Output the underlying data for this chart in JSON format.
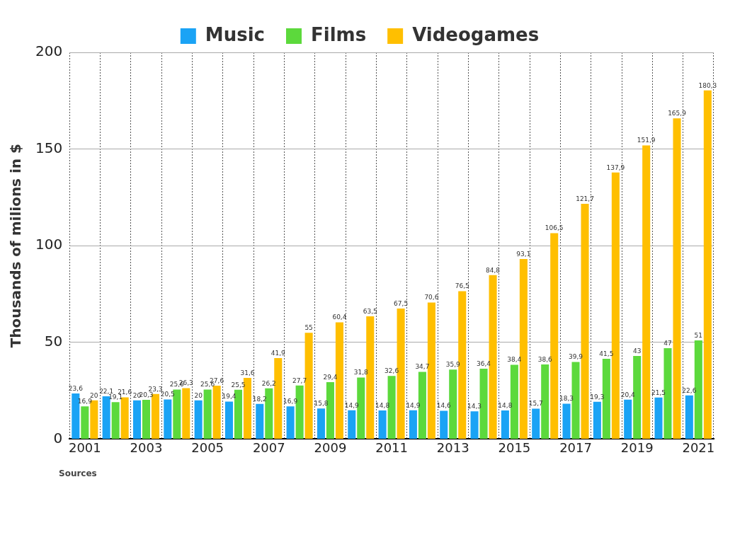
{
  "chart_data": {
    "type": "bar",
    "ylabel": "Thousands of milions in $",
    "categories": [
      "2001",
      null,
      "2003",
      null,
      "2005",
      null,
      "2007",
      null,
      "2009",
      null,
      "2011",
      null,
      "2013",
      null,
      "2015",
      null,
      "2017",
      null,
      "2019",
      null,
      "2021"
    ],
    "series": [
      {
        "name": "Music",
        "color": "#1aa3f5",
        "values": [
          23.6,
          22.1,
          20,
          20.5,
          20,
          19.4,
          18.2,
          16.9,
          15.8,
          14.9,
          14.8,
          14.9,
          14.6,
          14.3,
          14.8,
          15.7,
          18.3,
          19.3,
          20.4,
          21.5,
          22.6
        ],
        "value_labels": [
          "23,6",
          "22,1",
          "20",
          "20,5",
          "20",
          "19,4",
          "18,2",
          "16,9",
          "15,8",
          "14,9",
          "14,8",
          "14,9",
          "14,6",
          "14,3",
          "14,8",
          "15,7",
          "18,3",
          "19,3",
          "20,4",
          "21,5",
          "22,6"
        ]
      },
      {
        "name": "Films",
        "color": "#5cd93c",
        "values": [
          16.9,
          19.1,
          20.3,
          25.6,
          25.6,
          25.5,
          26.2,
          27.7,
          29.4,
          31.8,
          32.6,
          34.7,
          35.9,
          36.4,
          38.4,
          38.6,
          39.9,
          41.5,
          43,
          47,
          51
        ],
        "value_labels": [
          "16,9",
          "19,1",
          "20,3",
          "25,6",
          "25,6",
          "25,5",
          "26,2",
          "27,7",
          "29,4",
          "31,8",
          "32,6",
          "34,7",
          "35,9",
          "36,4",
          "38,4",
          "38,6",
          "39,9",
          "41,5",
          "43",
          "47",
          "51"
        ]
      },
      {
        "name": "Videogames",
        "color": "#ffbf00",
        "values": [
          20,
          21.6,
          23.3,
          26.3,
          27.6,
          31.6,
          41.9,
          55,
          60.4,
          63.5,
          67.5,
          70.6,
          76.5,
          84.8,
          93.1,
          106.5,
          121.7,
          137.9,
          151.9,
          165.9,
          180.3
        ],
        "value_labels": [
          "20",
          "21,6",
          "23,3",
          "26,3",
          "27,6",
          "31,6",
          "41,9",
          "55",
          "60,4",
          "63,5",
          "67,5",
          "70,6",
          "76,5",
          "84,8",
          "93,1",
          "106,5",
          "121,7",
          "137,9",
          "151,9",
          "165,9",
          "180,3"
        ]
      }
    ],
    "ylim": [
      0,
      200
    ],
    "yticks": [
      0,
      50,
      100,
      150,
      200
    ],
    "grid": true,
    "legend": "top",
    "annotations": [
      "Sources"
    ]
  }
}
